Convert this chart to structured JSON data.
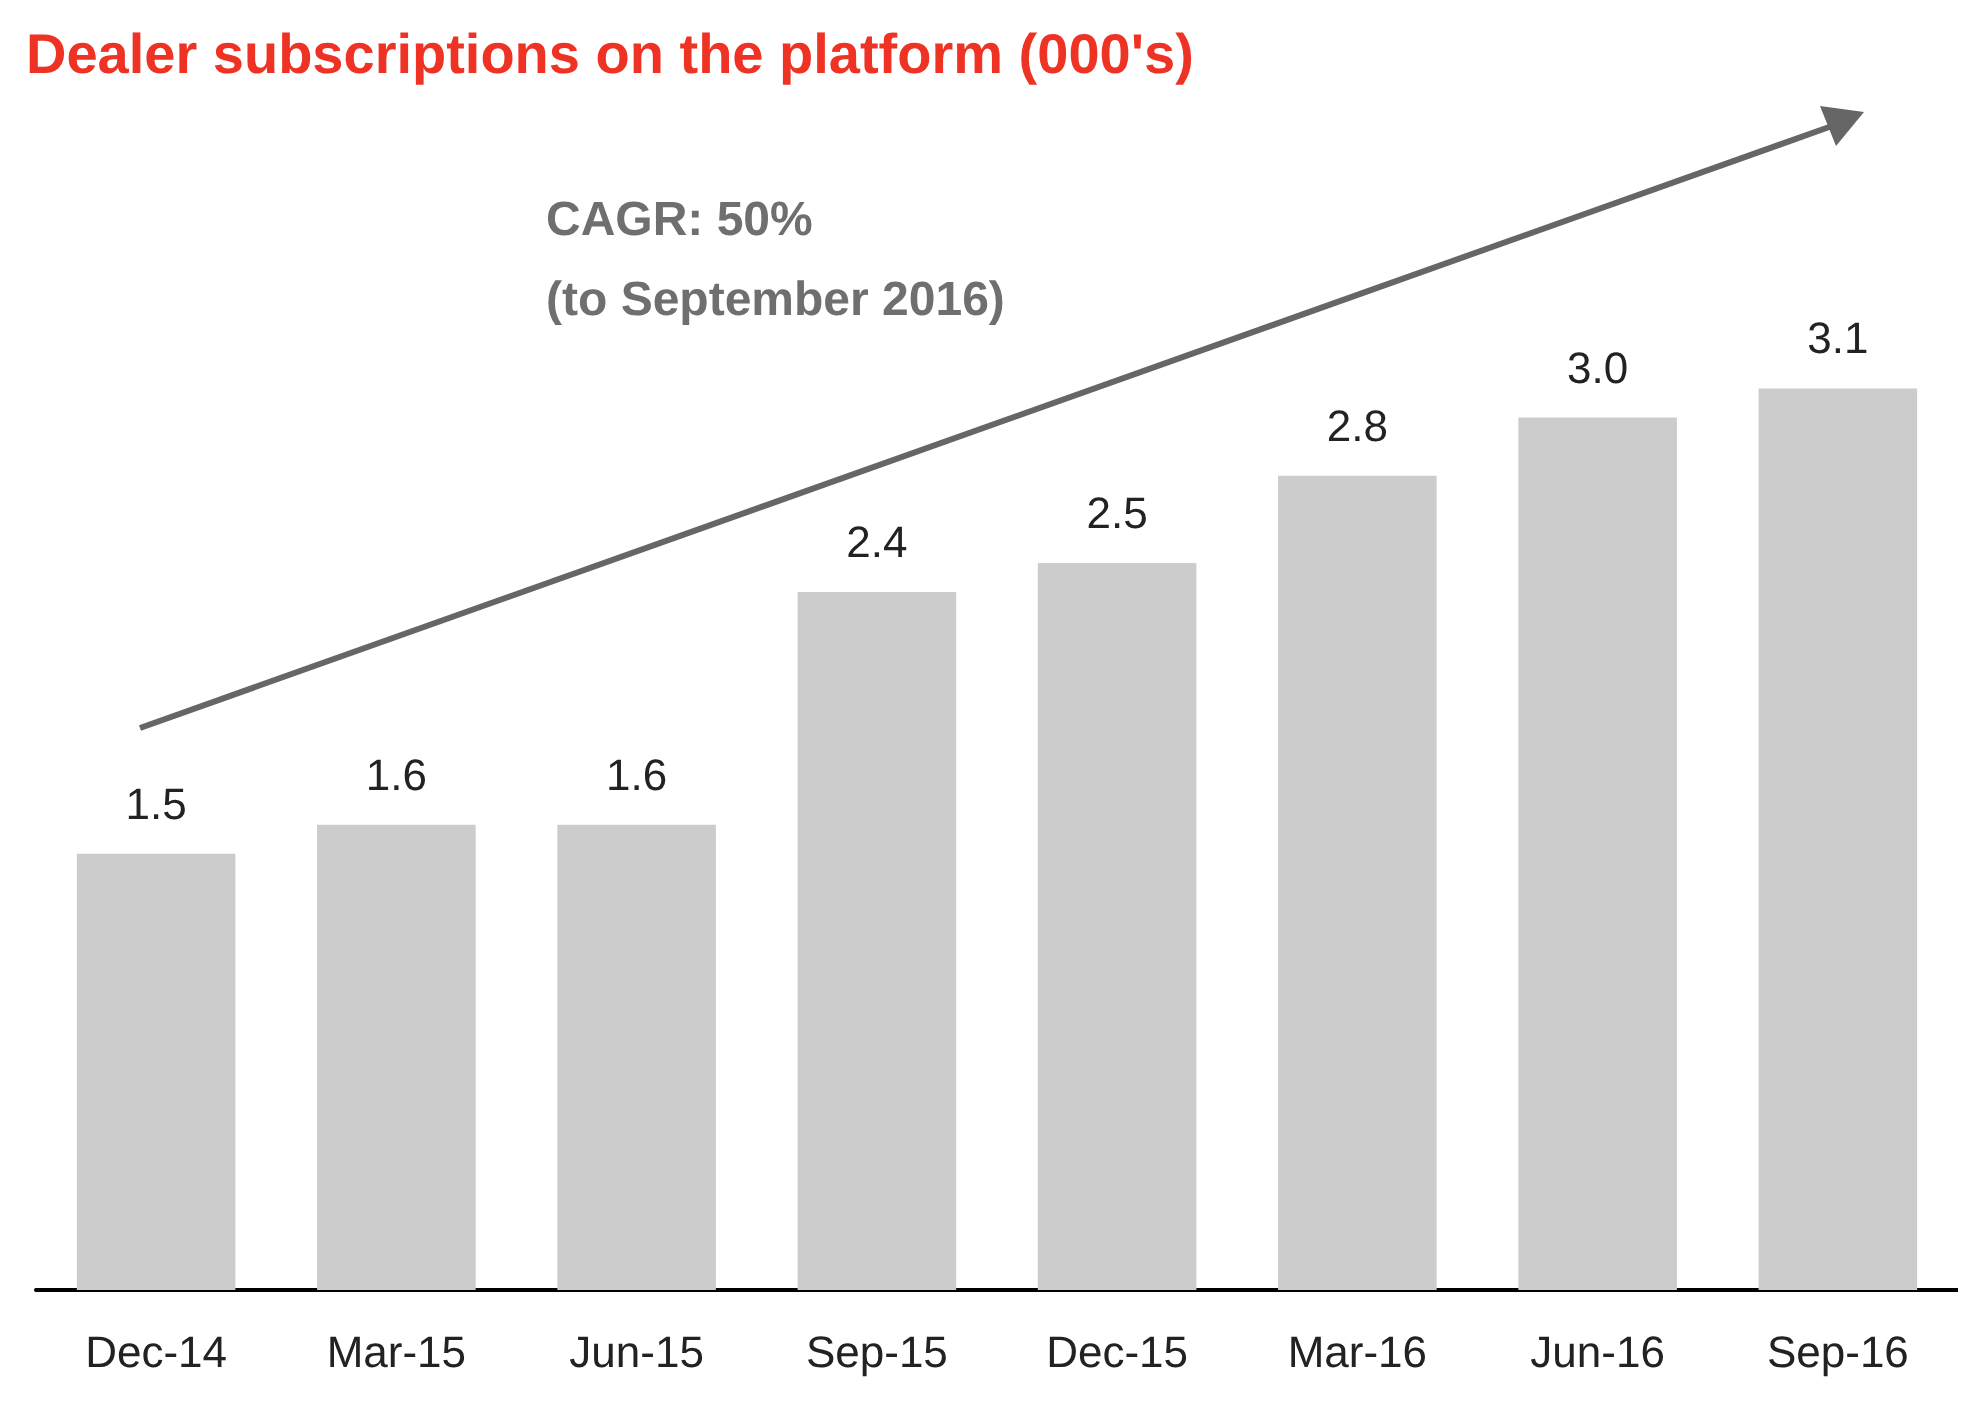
{
  "chart_data": {
    "type": "bar",
    "title": "Dealer subscriptions on the platform (000's)",
    "categories": [
      "Dec-14",
      "Mar-15",
      "Jun-15",
      "Sep-15",
      "Dec-15",
      "Mar-16",
      "Jun-16",
      "Sep-16"
    ],
    "values": [
      1.5,
      1.6,
      1.6,
      2.4,
      2.5,
      2.8,
      3.0,
      3.1
    ],
    "value_labels": [
      "1.5",
      "1.6",
      "1.6",
      "2.4",
      "2.5",
      "2.8",
      "3.0",
      "3.1"
    ],
    "color": "#cccccc",
    "annotations": [
      "CAGR: 50%\n(to September 2016)"
    ]
  }
}
